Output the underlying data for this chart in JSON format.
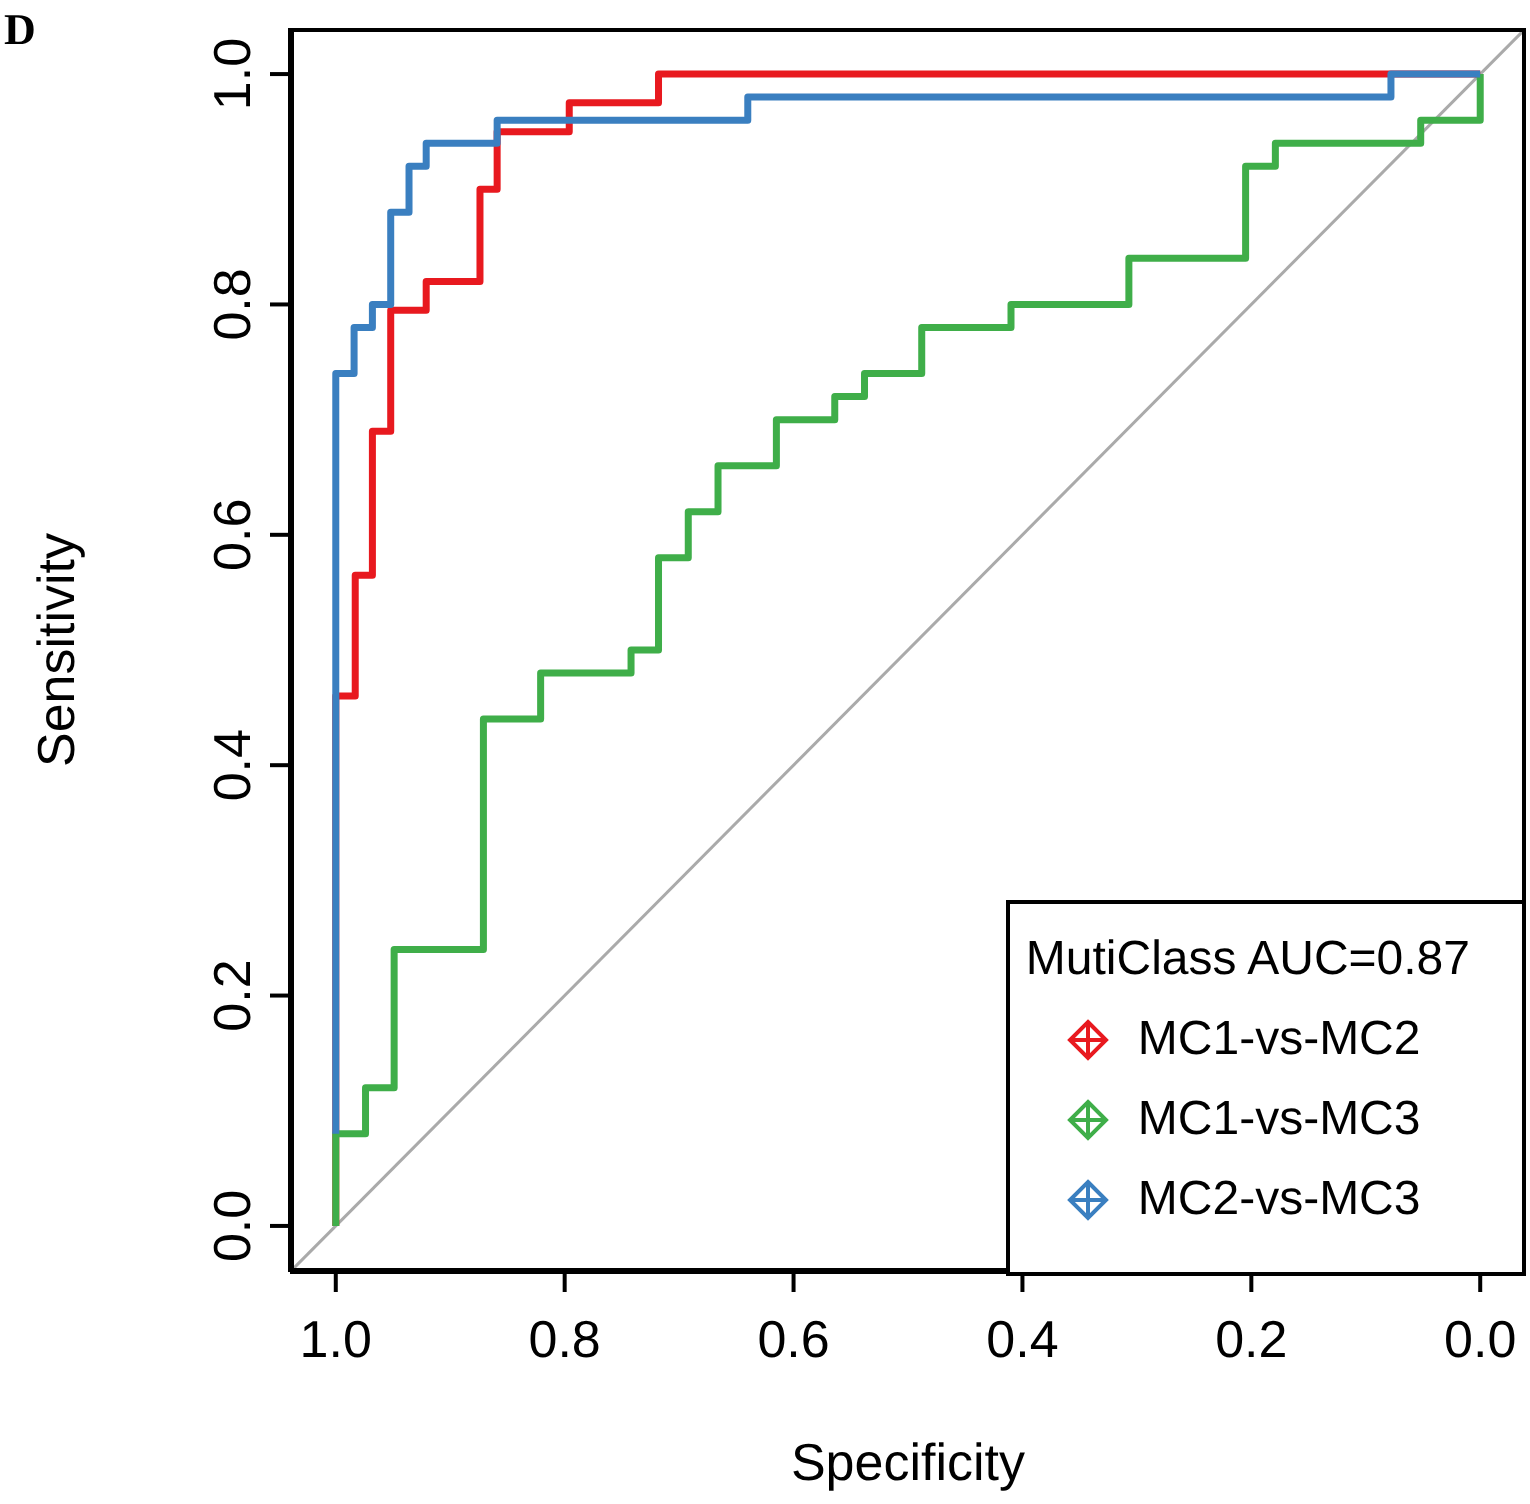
{
  "chart_data": {
    "type": "line",
    "xlabel": "Specificity",
    "ylabel": "Sensitivity",
    "legend_title": "MutiClass AUC=0.87",
    "legend": "bottom right",
    "annotations": [
      "D"
    ],
    "xlim": [
      1.04,
      -0.04
    ],
    "ylim": [
      -0.04,
      1.04
    ],
    "xticks": [
      {
        "value": 1,
        "label": "1.0"
      },
      {
        "value": 0.8,
        "label": "0.8"
      },
      {
        "value": 0.6,
        "label": "0.6"
      },
      {
        "value": 0.4,
        "label": "0.4"
      },
      {
        "value": 0.2,
        "label": "0.2"
      },
      {
        "value": 0,
        "label": "0.0"
      }
    ],
    "yticks": [
      {
        "value": 0,
        "label": "0.0"
      },
      {
        "value": 0.2,
        "label": "0.2"
      },
      {
        "value": 0.4,
        "label": "0.4"
      },
      {
        "value": 0.6,
        "label": "0.6"
      },
      {
        "value": 0.8,
        "label": "0.8"
      },
      {
        "value": 1,
        "label": "1.0"
      }
    ],
    "series": [
      {
        "color": "#aaaaaa",
        "x": [
          1.04,
          -0.04
        ],
        "values": [
          -0.04,
          1.04
        ]
      },
      {
        "name": "MC1-vs-MC2",
        "color": "#e8191f",
        "x": [
          1,
          1,
          0.983,
          0.983,
          0.968,
          0.968,
          0.952,
          0.952,
          0.921,
          0.921,
          0.874,
          0.874,
          0.859,
          0.859,
          0.796,
          0.796,
          0.718,
          0.718,
          0.08,
          0
        ],
        "values": [
          0,
          0.46,
          0.46,
          0.565,
          0.565,
          0.69,
          0.69,
          0.795,
          0.795,
          0.82,
          0.82,
          0.9,
          0.9,
          0.95,
          0.95,
          0.975,
          0.975,
          1,
          1,
          1
        ]
      },
      {
        "name": "MC1-vs-MC3",
        "color": "#3fae49",
        "x": [
          1,
          1,
          0.974,
          0.974,
          0.949,
          0.949,
          0.871,
          0.871,
          0.821,
          0.821,
          0.742,
          0.742,
          0.718,
          0.718,
          0.692,
          0.692,
          0.666,
          0.666,
          0.615,
          0.615,
          0.564,
          0.564,
          0.538,
          0.538,
          0.488,
          0.488,
          0.41,
          0.41,
          0.307,
          0.307,
          0.205,
          0.205,
          0.179,
          0.179,
          0.052,
          0.052,
          0,
          0
        ],
        "values": [
          0,
          0.08,
          0.08,
          0.12,
          0.12,
          0.24,
          0.24,
          0.44,
          0.44,
          0.48,
          0.48,
          0.5,
          0.5,
          0.58,
          0.58,
          0.62,
          0.62,
          0.66,
          0.66,
          0.7,
          0.7,
          0.72,
          0.72,
          0.74,
          0.74,
          0.78,
          0.78,
          0.8,
          0.8,
          0.84,
          0.84,
          0.92,
          0.92,
          0.94,
          0.94,
          0.96,
          0.96,
          1
        ]
      },
      {
        "name": "MC2-vs-MC3",
        "color": "#3a7fc0",
        "x": [
          1,
          1,
          0.984,
          0.984,
          0.968,
          0.968,
          0.952,
          0.952,
          0.936,
          0.936,
          0.921,
          0.921,
          0.859,
          0.859,
          0.64,
          0.64,
          0.078,
          0.078,
          0
        ],
        "values": [
          0.08,
          0.74,
          0.74,
          0.78,
          0.78,
          0.8,
          0.8,
          0.88,
          0.88,
          0.92,
          0.92,
          0.94,
          0.94,
          0.96,
          0.96,
          0.98,
          0.98,
          1,
          1
        ]
      }
    ]
  }
}
